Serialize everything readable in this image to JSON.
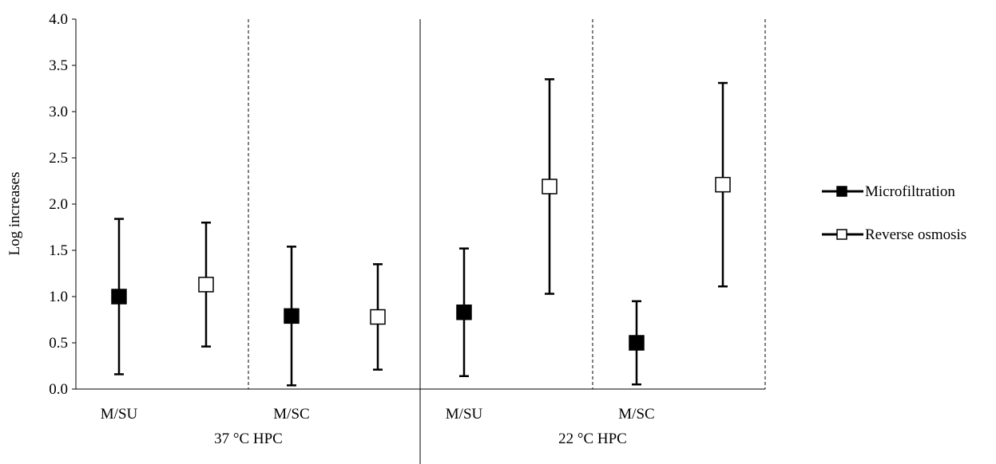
{
  "chart_data": {
    "type": "scatter",
    "ylabel": "Log increases",
    "ylim": [
      0,
      4
    ],
    "yticks": [
      "0.0",
      "0.5",
      "1.0",
      "1.5",
      "2.0",
      "2.5",
      "3.0",
      "3.5",
      "4.0"
    ],
    "grid": false,
    "legend_position": "right",
    "groups": [
      {
        "label": "37 °C HPC",
        "subgroups": [
          "M/SU",
          "M/SC"
        ]
      },
      {
        "label": "22 °C HPC",
        "subgroups": [
          "M/SU",
          "M/SC"
        ]
      }
    ],
    "series": [
      {
        "name": "Microfiltration",
        "marker": "filled-square",
        "points": [
          {
            "group": "37 °C HPC",
            "subgroup": "M/SU",
            "y": 1.0,
            "low": 0.16,
            "high": 1.84
          },
          {
            "group": "37 °C HPC",
            "subgroup": "M/SC",
            "y": 0.79,
            "low": 0.04,
            "high": 1.54
          },
          {
            "group": "22 °C HPC",
            "subgroup": "M/SU",
            "y": 0.83,
            "low": 0.14,
            "high": 1.52
          },
          {
            "group": "22 °C HPC",
            "subgroup": "M/SC",
            "y": 0.5,
            "low": 0.05,
            "high": 0.95
          }
        ]
      },
      {
        "name": "Reverse osmosis",
        "marker": "open-square",
        "points": [
          {
            "group": "37 °C HPC",
            "subgroup": "M/SU",
            "y": 1.13,
            "low": 0.46,
            "high": 1.8
          },
          {
            "group": "37 °C HPC",
            "subgroup": "M/SC",
            "y": 0.78,
            "low": 0.21,
            "high": 1.35
          },
          {
            "group": "22 °C HPC",
            "subgroup": "M/SU",
            "y": 2.19,
            "low": 1.03,
            "high": 3.35
          },
          {
            "group": "22 °C HPC",
            "subgroup": "M/SC",
            "y": 2.21,
            "low": 1.11,
            "high": 3.31
          }
        ]
      }
    ],
    "colors": {
      "axis": "#000000",
      "marker": "#000000",
      "fill": "#ffffff"
    }
  }
}
